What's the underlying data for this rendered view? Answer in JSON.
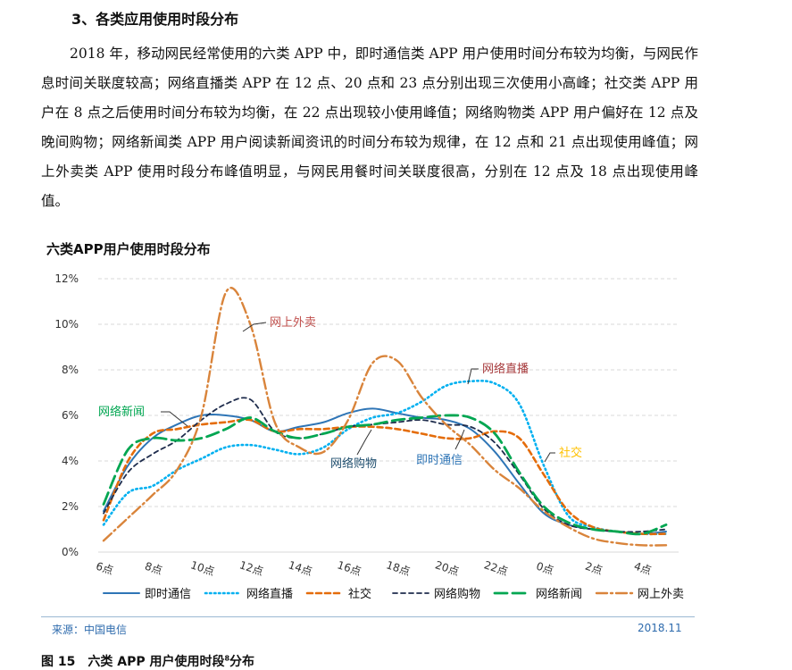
{
  "section": {
    "heading": "3、各类应用使用时段分布"
  },
  "paragraph": "2018 年，移动网民经常使用的六类 APP 中，即时通信类 APP 用户使用时间分布较为均衡，与网民作息时间关联度较高；网络直播类 APP 在 12 点、20 点和 23 点分别出现三次使用小高峰；社交类 APP 用户在 8 点之后使用时间分布较为均衡，在 22 点出现较小使用峰值；网络购物类 APP 用户偏好在 12 点及晚间购物；网络新闻类 APP 用户阅读新闻资讯的时间分布较为规律，在 12 点和 21 点出现使用峰值；网上外卖类 APP 使用时段分布峰值明显，与网民用餐时间关联度很高，分别在 12 点及 18 点出现使用峰值。",
  "chart_title": "六类APP用户使用时段分布",
  "source": "来源：中国电信",
  "date": "2018.11",
  "caption": {
    "text": "图 15　六类 APP 用户使用时段",
    "sup": "8",
    "suffix": "分布"
  },
  "chart_data": {
    "type": "line",
    "title": "六类APP用户使用时段分布",
    "x": [
      6,
      7,
      8,
      9,
      10,
      11,
      12,
      13,
      14,
      15,
      16,
      17,
      18,
      19,
      20,
      21,
      22,
      23,
      24,
      25,
      26,
      27,
      28,
      29
    ],
    "tick_labels": [
      "6点",
      "8点",
      "10点",
      "12点",
      "14点",
      "16点",
      "18点",
      "20点",
      "22点",
      "0点",
      "2点",
      "4点"
    ],
    "tick_x": [
      6,
      8,
      10,
      12,
      14,
      16,
      18,
      20,
      22,
      24,
      26,
      28
    ],
    "ylim": [
      0,
      12
    ],
    "yticks": [
      "0%",
      "2%",
      "4%",
      "6%",
      "8%",
      "10%",
      "12%"
    ],
    "grid": true,
    "legend_position": "bottom",
    "series": [
      {
        "name": "即时通信",
        "color": "#2e75b6",
        "style": "solid",
        "values": [
          1.8,
          3.8,
          5.0,
          5.6,
          6.0,
          6.0,
          5.8,
          5.3,
          5.5,
          5.7,
          6.1,
          6.3,
          6.1,
          5.9,
          5.8,
          5.4,
          4.4,
          3.0,
          1.7,
          1.2,
          1.0,
          0.9,
          0.8,
          0.9
        ]
      },
      {
        "name": "网络直播",
        "color": "#00b0f0",
        "style": "dotted",
        "values": [
          1.2,
          2.6,
          2.9,
          3.6,
          4.1,
          4.6,
          4.7,
          4.5,
          4.3,
          4.6,
          5.4,
          5.9,
          6.1,
          6.6,
          7.3,
          7.5,
          7.4,
          6.5,
          3.8,
          1.6,
          1.1,
          0.9,
          0.8,
          0.8
        ]
      },
      {
        "name": "社交",
        "color": "#e46c0a",
        "style": "dash",
        "values": [
          1.4,
          4.0,
          5.2,
          5.4,
          5.6,
          5.7,
          5.8,
          5.3,
          5.4,
          5.4,
          5.5,
          5.5,
          5.4,
          5.2,
          5.0,
          5.0,
          5.3,
          5.0,
          3.4,
          1.8,
          1.1,
          0.9,
          0.8,
          0.8
        ]
      },
      {
        "name": "网络购物",
        "color": "#1f2d4d",
        "style": "dash-short",
        "values": [
          1.7,
          3.5,
          4.3,
          4.9,
          5.8,
          6.5,
          6.7,
          5.3,
          5.0,
          5.2,
          5.5,
          5.6,
          5.7,
          5.8,
          5.6,
          5.5,
          4.8,
          3.4,
          1.9,
          1.2,
          1.0,
          0.9,
          0.9,
          1.0
        ]
      },
      {
        "name": "网络新闻",
        "color": "#00a651",
        "style": "long-dash",
        "values": [
          2.1,
          4.5,
          5.0,
          4.9,
          5.0,
          5.4,
          5.9,
          5.3,
          5.0,
          5.2,
          5.5,
          5.6,
          5.8,
          5.9,
          6.0,
          5.9,
          5.2,
          3.5,
          2.0,
          1.3,
          1.0,
          0.9,
          0.8,
          1.2
        ]
      },
      {
        "name": "网上外卖",
        "color": "#d9843b",
        "style": "dash-dot",
        "values": [
          0.5,
          1.5,
          2.5,
          3.6,
          6.0,
          11.4,
          10.0,
          5.7,
          4.6,
          4.4,
          5.8,
          8.3,
          8.4,
          6.8,
          5.6,
          4.7,
          3.6,
          2.8,
          1.8,
          1.1,
          0.6,
          0.4,
          0.3,
          0.3
        ]
      }
    ],
    "annotations": [
      {
        "text": "网上外卖",
        "color": "#c0504d"
      },
      {
        "text": "网络直播",
        "color": "#a6393b"
      },
      {
        "text": "网络新闻",
        "color": "#00a651"
      },
      {
        "text": "社交",
        "color": "#ffc000"
      },
      {
        "text": "网络购物",
        "color": "#1f4e6e"
      },
      {
        "text": "即时通信",
        "color": "#2e75b6"
      }
    ]
  }
}
